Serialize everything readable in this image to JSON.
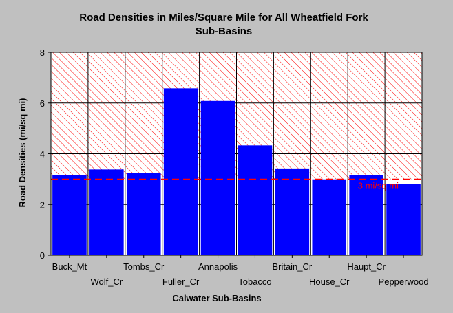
{
  "chart_data": {
    "type": "bar",
    "title": [
      "Road Densities in Miles/Square Mile for All Wheatfield Fork",
      "Sub-Basins"
    ],
    "xlabel": "Calwater Sub-Basins",
    "ylabel": "Road Densities (mi/sq mi)",
    "ylim": [
      0,
      8
    ],
    "yticks": [
      0,
      2,
      4,
      6,
      8
    ],
    "categories": [
      "Buck_Mt",
      "Wolf_Cr",
      "Tombs_Cr",
      "Fuller_Cr",
      "Annapolis",
      "Tobacco",
      "Britain_Cr",
      "House_Cr",
      "Haupt_Cr",
      "Pepperwood"
    ],
    "values": [
      3.15,
      3.38,
      3.23,
      6.58,
      6.08,
      4.33,
      3.42,
      2.99,
      3.15,
      2.82
    ],
    "threshold": {
      "value": 3,
      "label": "3 mi/sq mi",
      "color": "#ff0000"
    },
    "hatched_region": {
      "from": 3,
      "to": 8,
      "color": "#ff0000"
    },
    "bar_color": "#0000ff",
    "grid": true
  }
}
